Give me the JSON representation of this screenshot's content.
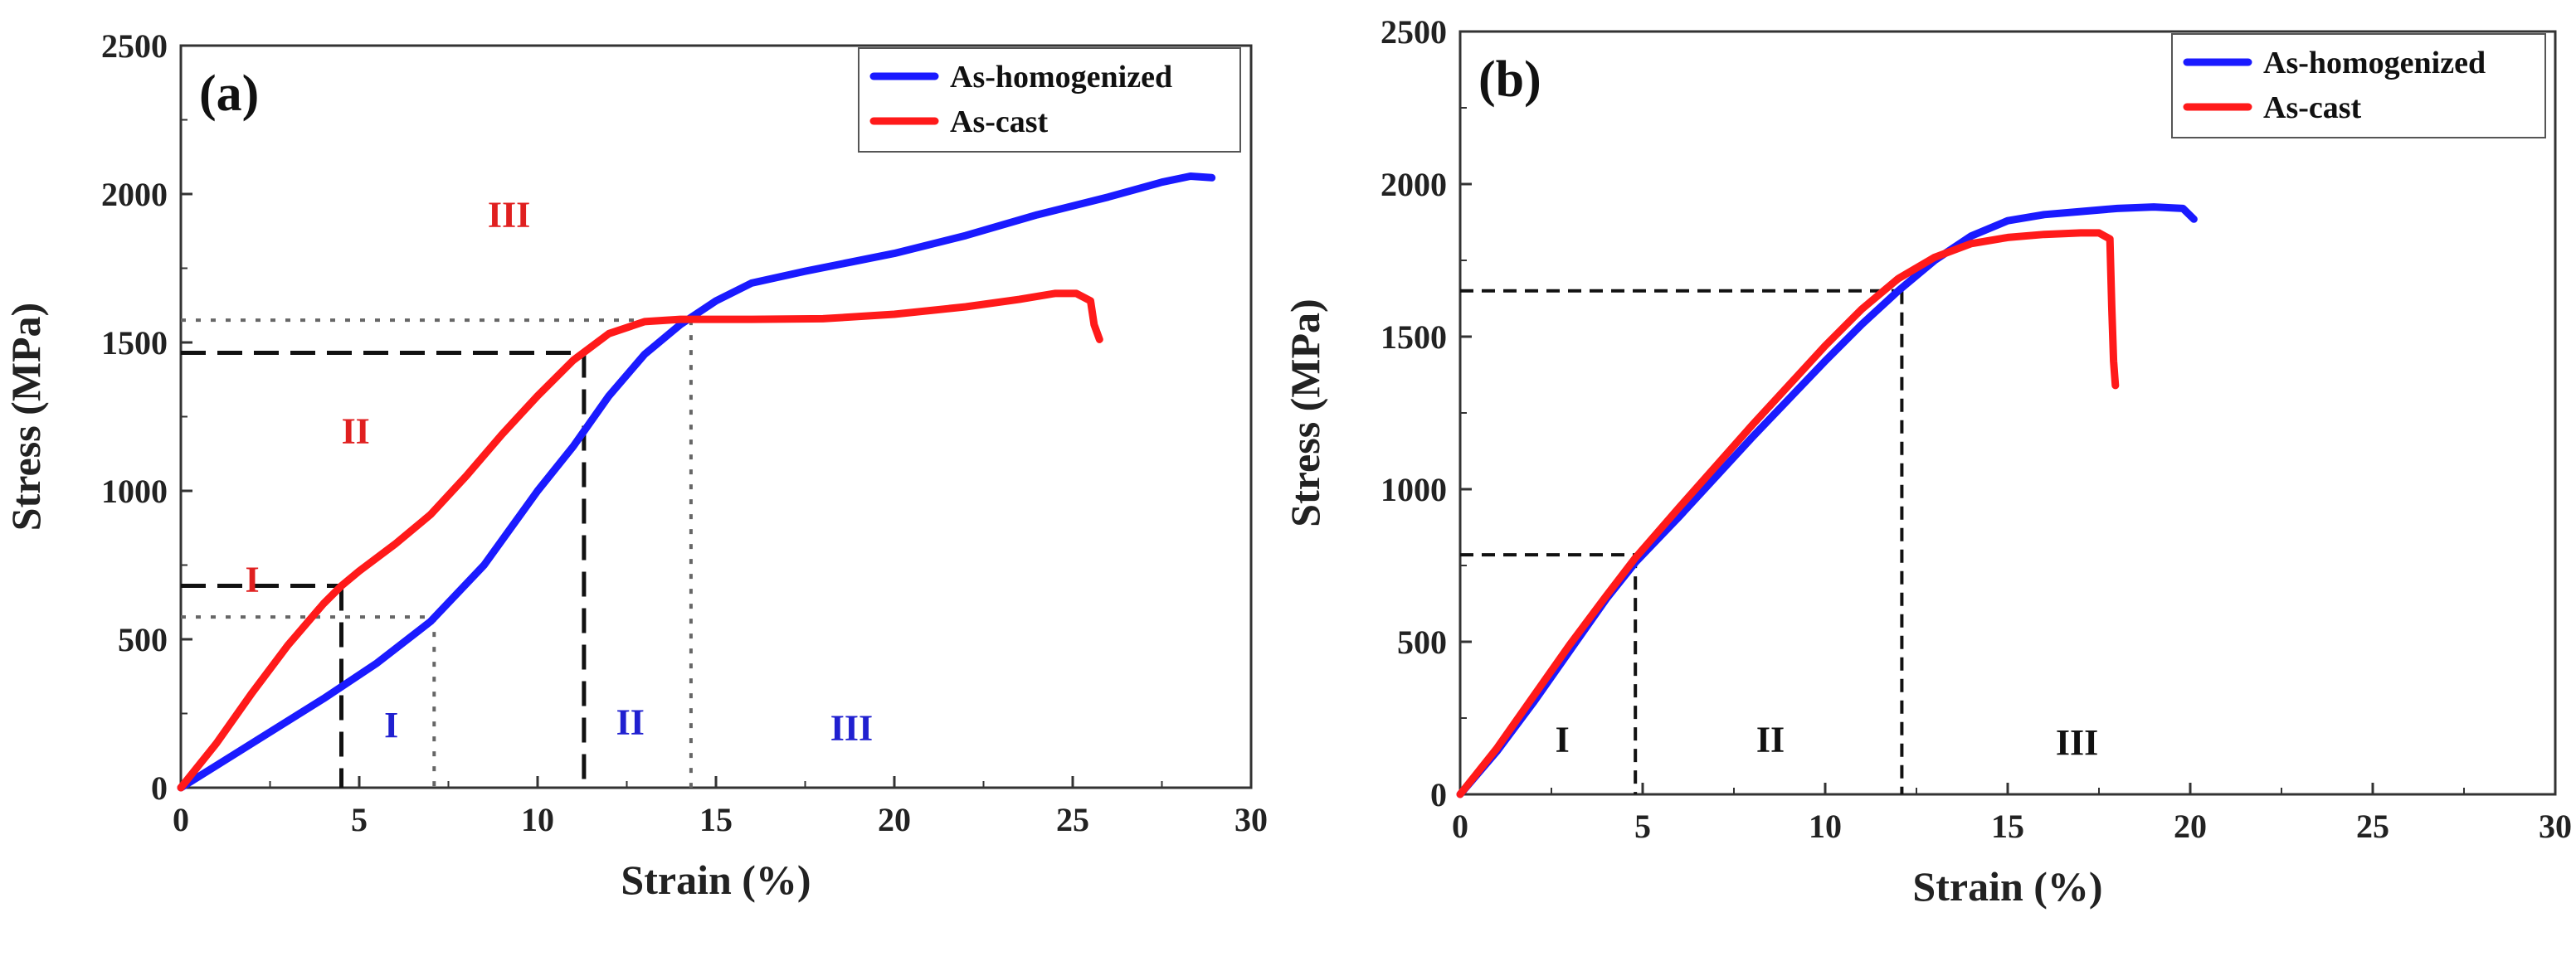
{
  "chart_data": [
    {
      "type": "line",
      "panel_label": "(a)",
      "xlabel": "Strain (%)",
      "ylabel": "Stress (MPa)",
      "xlim": [
        0,
        30
      ],
      "ylim": [
        0,
        2500
      ],
      "xticks": [
        0,
        5,
        10,
        15,
        20,
        25,
        30
      ],
      "yticks": [
        0,
        500,
        1000,
        1500,
        2000,
        2500
      ],
      "legend_position": "top-right",
      "series": [
        {
          "name": "As-homogenized",
          "color": "#1a1aff",
          "points": [
            [
              0,
              0
            ],
            [
              2,
              150
            ],
            [
              4,
              300
            ],
            [
              5.5,
              420
            ],
            [
              7,
              560
            ],
            [
              8.5,
              750
            ],
            [
              10,
              1000
            ],
            [
              11,
              1150
            ],
            [
              12,
              1320
            ],
            [
              13,
              1460
            ],
            [
              14,
              1560
            ],
            [
              15,
              1640
            ],
            [
              16,
              1700
            ],
            [
              17.5,
              1740
            ],
            [
              20,
              1800
            ],
            [
              22,
              1860
            ],
            [
              24,
              1930
            ],
            [
              26,
              1990
            ],
            [
              27.5,
              2040
            ],
            [
              28.3,
              2060
            ],
            [
              28.9,
              2055
            ]
          ]
        },
        {
          "name": "As-cast",
          "color": "#ff1a1a",
          "points": [
            [
              0,
              0
            ],
            [
              1,
              150
            ],
            [
              2,
              320
            ],
            [
              3,
              480
            ],
            [
              4,
              620
            ],
            [
              4.5,
              680
            ],
            [
              5,
              730
            ],
            [
              6,
              820
            ],
            [
              7,
              920
            ],
            [
              8,
              1050
            ],
            [
              9,
              1190
            ],
            [
              10,
              1320
            ],
            [
              11,
              1440
            ],
            [
              12,
              1530
            ],
            [
              13,
              1570
            ],
            [
              14,
              1578
            ],
            [
              16,
              1578
            ],
            [
              18,
              1580
            ],
            [
              20,
              1595
            ],
            [
              22,
              1620
            ],
            [
              23.5,
              1645
            ],
            [
              24.5,
              1665
            ],
            [
              25.1,
              1665
            ],
            [
              25.5,
              1640
            ],
            [
              25.6,
              1560
            ],
            [
              25.75,
              1510
            ]
          ]
        }
      ],
      "reference_lines": [
        {
          "series": "As-cast",
          "style": "dashed",
          "x": 4.5,
          "y": 680
        },
        {
          "series": "As-cast",
          "style": "dashed",
          "x": 11.3,
          "y": 1465
        },
        {
          "series": "As-homogenized",
          "style": "dotted",
          "x": 7.1,
          "y": 575
        },
        {
          "series": "As-homogenized",
          "style": "dotted",
          "x": 14.3,
          "y": 1575
        }
      ],
      "region_labels": [
        {
          "text": "I",
          "color": "#e02020",
          "x": 2,
          "y": 660
        },
        {
          "text": "II",
          "color": "#e02020",
          "x": 4.9,
          "y": 1160
        },
        {
          "text": "III",
          "color": "#e02020",
          "x": 9.2,
          "y": 1890
        },
        {
          "text": "I",
          "color": "#2020d0",
          "x": 5.9,
          "y": 170
        },
        {
          "text": "II",
          "color": "#2020d0",
          "x": 12.6,
          "y": 180
        },
        {
          "text": "III",
          "color": "#2020d0",
          "x": 18.8,
          "y": 160
        }
      ]
    },
    {
      "type": "line",
      "panel_label": "(b)",
      "xlabel": "Strain (%)",
      "ylabel": "Stress (MPa)",
      "xlim": [
        0,
        30
      ],
      "ylim": [
        0,
        2500
      ],
      "xticks": [
        0,
        5,
        10,
        15,
        20,
        25,
        30
      ],
      "yticks": [
        0,
        500,
        1000,
        1500,
        2000,
        2500
      ],
      "legend_position": "top-right",
      "series": [
        {
          "name": "As-homogenized",
          "color": "#1a1aff",
          "points": [
            [
              0,
              0
            ],
            [
              1,
              140
            ],
            [
              2,
              300
            ],
            [
              3,
              470
            ],
            [
              4,
              640
            ],
            [
              4.8,
              760
            ],
            [
              6,
              910
            ],
            [
              8,
              1170
            ],
            [
              10,
              1420
            ],
            [
              11,
              1540
            ],
            [
              12,
              1650
            ],
            [
              13,
              1750
            ],
            [
              14,
              1830
            ],
            [
              15,
              1880
            ],
            [
              16,
              1900
            ],
            [
              17,
              1910
            ],
            [
              18,
              1920
            ],
            [
              19,
              1925
            ],
            [
              19.8,
              1920
            ],
            [
              20.1,
              1885
            ]
          ]
        },
        {
          "name": "As-cast",
          "color": "#ff1a1a",
          "points": [
            [
              0,
              0
            ],
            [
              1,
              150
            ],
            [
              2,
              320
            ],
            [
              3,
              490
            ],
            [
              4,
              650
            ],
            [
              4.8,
              775
            ],
            [
              6,
              940
            ],
            [
              8,
              1210
            ],
            [
              10,
              1470
            ],
            [
              11,
              1590
            ],
            [
              12,
              1690
            ],
            [
              13,
              1760
            ],
            [
              14,
              1805
            ],
            [
              15,
              1825
            ],
            [
              16,
              1835
            ],
            [
              17,
              1840
            ],
            [
              17.5,
              1840
            ],
            [
              17.8,
              1820
            ],
            [
              17.85,
              1600
            ],
            [
              17.9,
              1420
            ],
            [
              17.95,
              1340
            ]
          ]
        }
      ],
      "reference_lines": [
        {
          "series": "both",
          "style": "dashed",
          "x": 4.8,
          "y": 785
        },
        {
          "series": "both",
          "style": "dashed",
          "x": 12.1,
          "y": 1650
        }
      ],
      "region_labels": [
        {
          "text": "I",
          "color": "#111111",
          "x": 2.8,
          "y": 140
        },
        {
          "text": "II",
          "color": "#111111",
          "x": 8.5,
          "y": 140
        },
        {
          "text": "III",
          "color": "#111111",
          "x": 16.9,
          "y": 130
        }
      ]
    }
  ]
}
